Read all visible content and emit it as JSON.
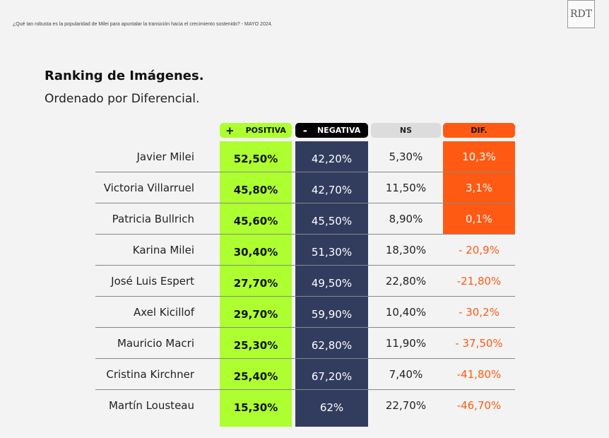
{
  "header": {
    "subtitle": "¿Qué tan robusta es la popularidad de Milei para apuntalar la transición hacia el crecimiento sostenido? - MAYO 2024.",
    "logo": "RDT"
  },
  "chart_data": {
    "type": "table",
    "title": "Ranking de Imágenes.",
    "subtitle": "Ordenado por Diferencial.",
    "columns": [
      {
        "icon": "+",
        "label": "POSITIVA"
      },
      {
        "icon": "-",
        "label": "NEGATIVA"
      },
      {
        "icon": "",
        "label": "NS"
      },
      {
        "icon": "",
        "label": "DIF."
      }
    ],
    "rows": [
      {
        "name": "Javier Milei",
        "pos": "52,50%",
        "neg": "42,20%",
        "ns": "5,30%",
        "dif": "10,3%"
      },
      {
        "name": "Victoria Villarruel",
        "pos": "45,80%",
        "neg": "42,70%",
        "ns": "11,50%",
        "dif": "3,1%"
      },
      {
        "name": "Patricia Bullrich",
        "pos": "45,60%",
        "neg": "45,50%",
        "ns": "8,90%",
        "dif": "0,1%"
      },
      {
        "name": "Karina Milei",
        "pos": "30,40%",
        "neg": "51,30%",
        "ns": "18,30%",
        "dif": "- 20,9%"
      },
      {
        "name": "José Luis Espert",
        "pos": "27,70%",
        "neg": "49,50%",
        "ns": "22,80%",
        "dif": "-21,80%"
      },
      {
        "name": "Axel Kicillof",
        "pos": "29,70%",
        "neg": "59,90%",
        "ns": "10,40%",
        "dif": "- 30,2%"
      },
      {
        "name": "Mauricio Macri",
        "pos": "25,30%",
        "neg": "62,80%",
        "ns": "11,90%",
        "dif": "- 37,50%"
      },
      {
        "name": "Cristina Kirchner",
        "pos": "25,40%",
        "neg": "67,20%",
        "ns": "7,40%",
        "dif": "-41,80%"
      },
      {
        "name": "Martín Lousteau",
        "pos": "15,30%",
        "neg": "62%",
        "ns": "22,70%",
        "dif": "-46,70%"
      }
    ]
  },
  "colors": {
    "positive": "#adff2f",
    "negative": "#323c5e",
    "ns": "#dcdcdc",
    "dif": "#ff5a14"
  }
}
